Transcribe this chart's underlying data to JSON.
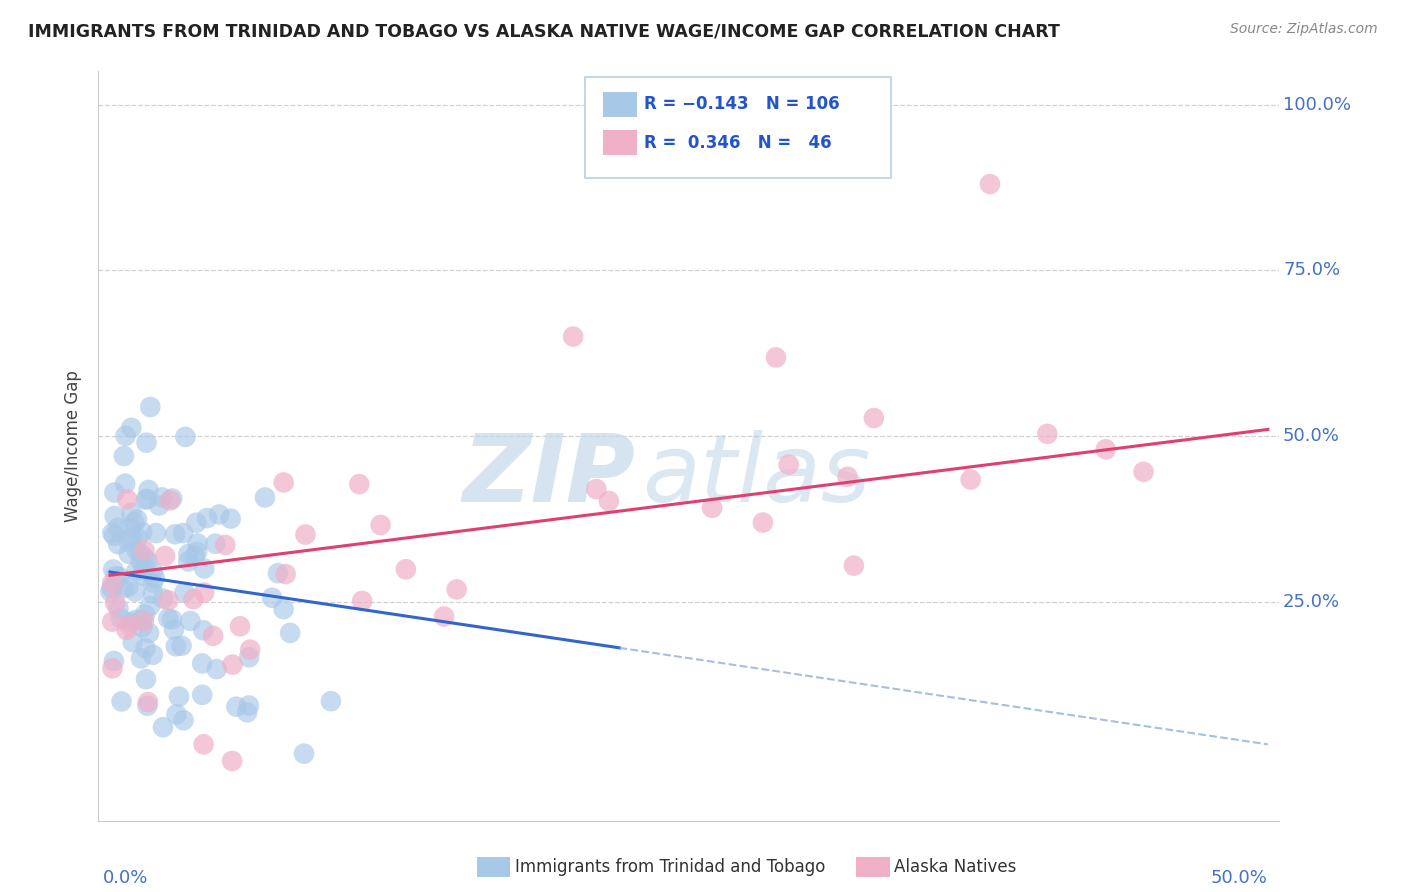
{
  "title": "IMMIGRANTS FROM TRINIDAD AND TOBAGO VS ALASKA NATIVE WAGE/INCOME GAP CORRELATION CHART",
  "source": "Source: ZipAtlas.com",
  "ylabel": "Wage/Income Gap",
  "color_blue": "#a8c8e8",
  "color_blue_line": "#3366cc",
  "color_blue_dash": "#88aad4",
  "color_pink": "#f0b0c8",
  "color_pink_line": "#e04070",
  "watermark_zip": "#c8dff0",
  "watermark_atlas": "#b8d0e8",
  "trend_blue_intercept": 0.295,
  "trend_blue_slope": -0.52,
  "trend_pink_intercept": 0.29,
  "trend_pink_slope": 0.44,
  "xlim": [
    -0.005,
    0.505
  ],
  "ylim": [
    -0.08,
    1.05
  ],
  "legend_r1": "R = -0.143",
  "legend_n1": "N = 106",
  "legend_r2": "R =  0.346",
  "legend_n2": "N =  46"
}
